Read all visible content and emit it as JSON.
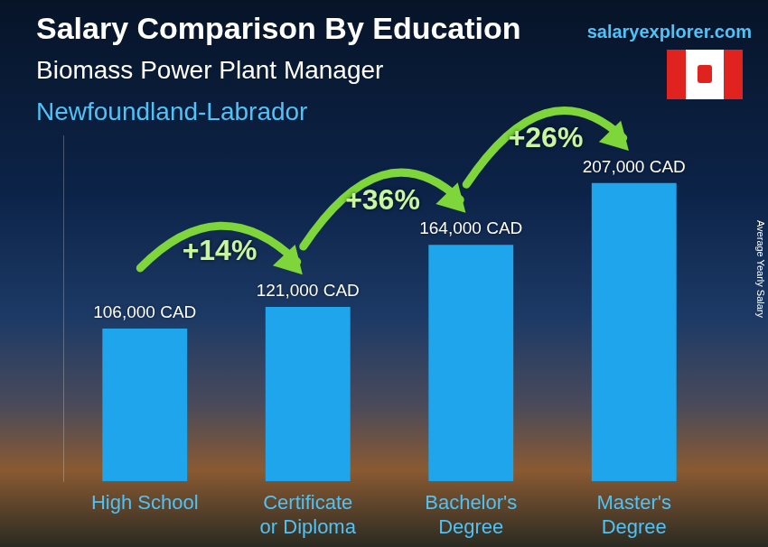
{
  "chart_data": {
    "type": "bar",
    "title": "Salary Comparison By Education",
    "subtitle": "Biomass Power Plant Manager",
    "location": "Newfoundland-Labrador",
    "source": "salaryexplorer.com",
    "ylabel": "Average Yearly Salary",
    "categories": [
      "High School",
      "Certificate or Diploma",
      "Bachelor's Degree",
      "Master's Degree"
    ],
    "values": [
      106000,
      121000,
      164000,
      207000
    ],
    "value_labels": [
      "106,000 CAD",
      "121,000 CAD",
      "164,000 CAD",
      "207,000 CAD"
    ],
    "data_labels": true,
    "color": "#1ea5ec",
    "ylim": [
      0,
      240000
    ],
    "grid": false,
    "tick_labels": "x",
    "annotations": [
      {
        "text": "+14%",
        "between": [
          "High School",
          "Certificate or Diploma"
        ]
      },
      {
        "text": "+36%",
        "between": [
          "Certificate or Diploma",
          "Bachelor's Degree"
        ]
      },
      {
        "text": "+26%",
        "between": [
          "Bachelor's Degree",
          "Master's Degree"
        ]
      }
    ]
  }
}
